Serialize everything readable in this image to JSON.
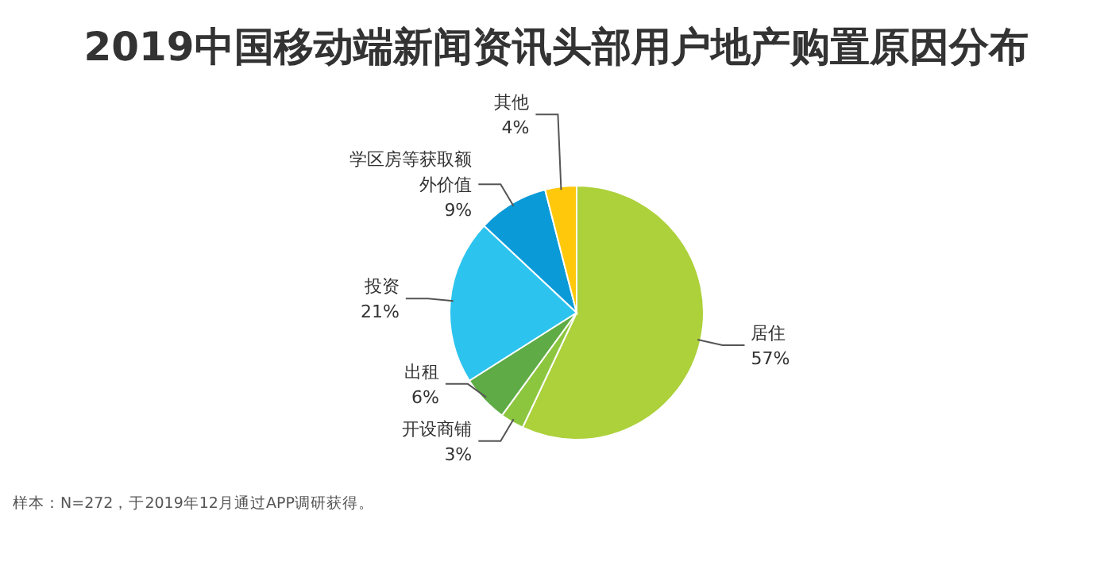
{
  "chart_data": {
    "type": "pie",
    "title": "2019中国移动端新闻资讯头部用户地产购置原因分布",
    "categories": [
      "居住",
      "开设商铺",
      "出租",
      "投资",
      "学区房等获取额外价值",
      "其他"
    ],
    "values": [
      57,
      3,
      6,
      21,
      9,
      4
    ],
    "value_labels": [
      "57%",
      "3%",
      "6%",
      "21%",
      "9%",
      "4%"
    ],
    "colors": [
      "#acd13a",
      "#8cc63f",
      "#5fab46",
      "#2cc4ef",
      "#0b9ad8",
      "#ffc80a"
    ],
    "annotations": [
      "样本：N=272，于2019年12月通过APP调研获得。"
    ]
  }
}
